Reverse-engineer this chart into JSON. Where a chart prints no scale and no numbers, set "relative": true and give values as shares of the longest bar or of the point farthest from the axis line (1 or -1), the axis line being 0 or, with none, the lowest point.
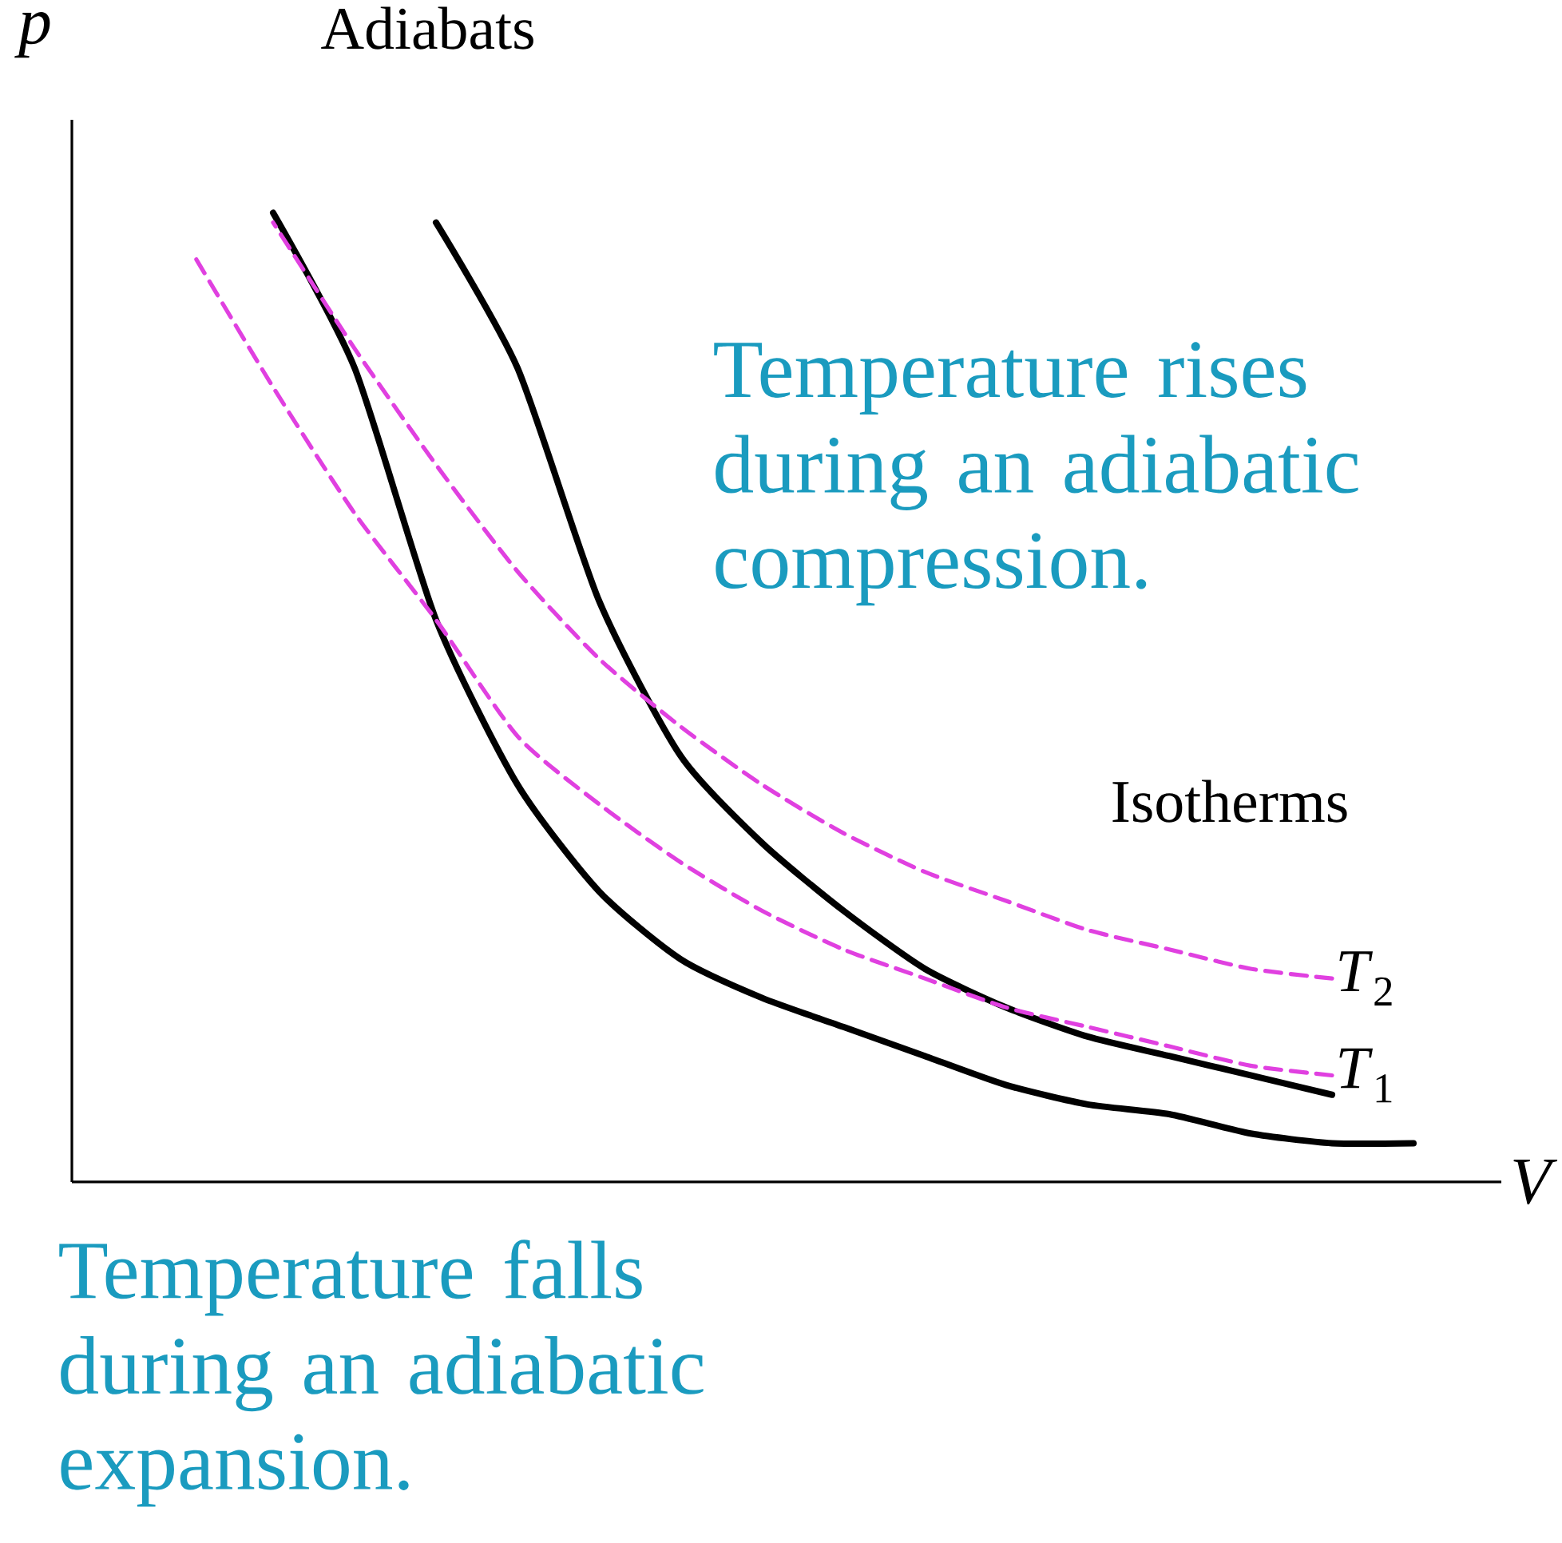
{
  "chart_data": {
    "type": "line",
    "relative": true,
    "xlabel": "V",
    "ylabel": "p",
    "categories": [
      null,
      null,
      null,
      null,
      null,
      null,
      null,
      null,
      null,
      null,
      null,
      null,
      null,
      null,
      null,
      null
    ],
    "series": [
      {
        "color": "#000000",
        "line_style": "solid",
        "values": [
          null,
          1.0,
          0.84,
          0.58,
          0.41,
          0.3,
          0.23,
          0.19,
          0.16,
          0.13,
          0.1,
          0.08,
          0.07,
          0.05,
          0.04,
          0.04
        ]
      },
      {
        "color": "#000000",
        "line_style": "solid",
        "values": [
          null,
          null,
          null,
          0.99,
          0.84,
          0.6,
          0.44,
          0.35,
          0.28,
          0.22,
          0.18,
          0.15,
          0.13,
          0.11,
          0.09,
          null
        ]
      },
      {
        "name": "*T*$_{1}$",
        "color": "#e040e0",
        "line_style": "dashed",
        "values": [
          0.96,
          0.82,
          0.69,
          0.58,
          0.46,
          0.39,
          0.33,
          0.28,
          0.24,
          0.21,
          0.18,
          0.16,
          0.14,
          0.12,
          0.11,
          null
        ]
      },
      {
        "name": "*T*$_{2}$",
        "color": "#e040e0",
        "line_style": "dashed",
        "values": [
          null,
          0.99,
          0.86,
          0.74,
          0.63,
          0.54,
          0.47,
          0.41,
          0.36,
          0.32,
          0.29,
          0.26,
          0.24,
          0.22,
          0.21,
          null
        ]
      }
    ],
    "annotations": [
      "Adiabats",
      "Isotherms",
      "Temperature rises during an adiabatic compression.",
      "Temperature falls during an adiabatic expansion."
    ]
  }
}
